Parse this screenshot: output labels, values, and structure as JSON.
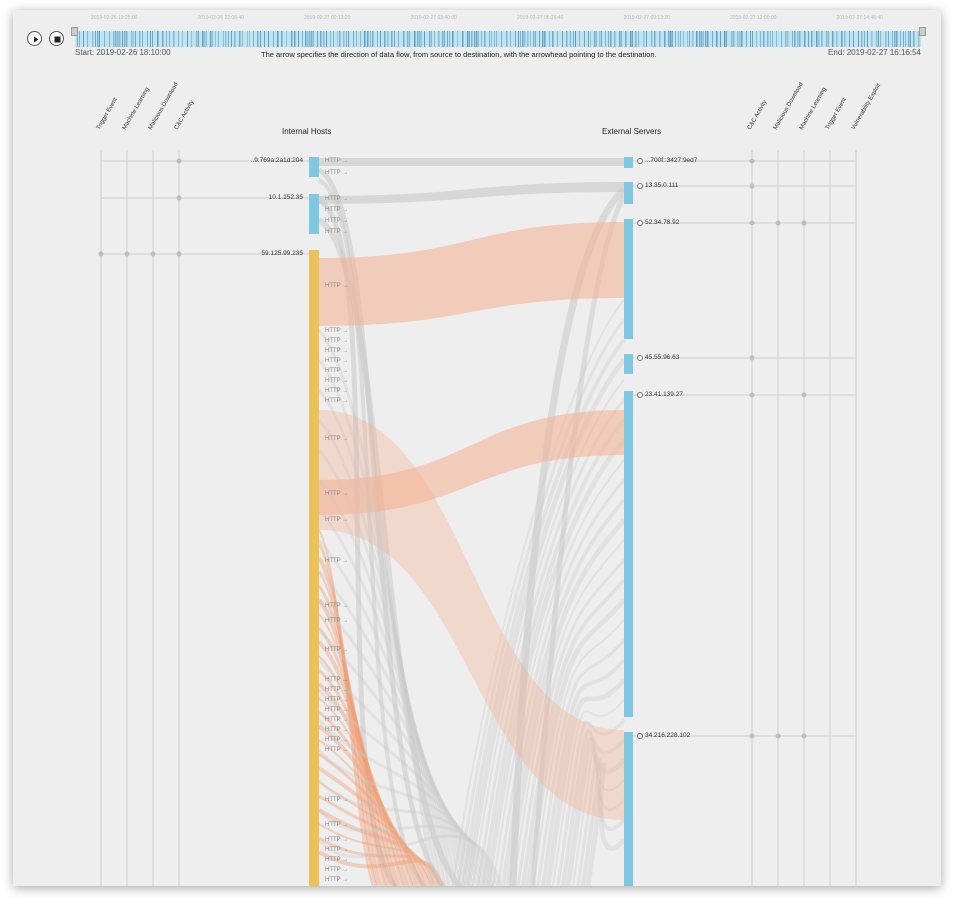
{
  "timeline": {
    "tick_labels": [
      "2019-02-26 19:25:00",
      "2019-02-26 22:06:40",
      "2019-02-27 00:13:20",
      "2019-02-27 03:40:00",
      "2019-02-27 06:26:40",
      "2019-02-27 09:13:20",
      "2019-02-27 12:00:00",
      "2019-02-27 14:46:40"
    ],
    "start_label": "Start: 2019-02-26 18:10:00",
    "end_label": "End: 2019-02-27 16:16:54",
    "description": "The arrow specifies the direction of data flow, from source to destination, with the arrowhead pointing to the destination.",
    "controls": {
      "play_icon": "play-icon",
      "stop_icon": "stop-icon"
    },
    "strip_color": "#bfe3ef",
    "strip_mark_color": "#4a90b8"
  },
  "left_categories": [
    "Trigger Event",
    "Machine Learning",
    "Malicious Download",
    "C&C Activity"
  ],
  "right_categories": [
    "C&C Activity",
    "Malicious Download",
    "Machine Learning",
    "Trigger Event",
    "Vulnerability Exploit"
  ],
  "internal_title": "Internal Hosts",
  "external_title": "External Servers",
  "internal_hosts": [
    {
      "label": "..9:769a:2a1d:204",
      "color": "#7ec8e3",
      "marks": [
        4
      ]
    },
    {
      "label": "10.1.152.35",
      "color": "#7ec8e3",
      "marks": [
        4
      ]
    },
    {
      "label": "59.125.99.235",
      "color": "#ebc15a",
      "marks": [
        1,
        2,
        3,
        4
      ]
    }
  ],
  "external_servers": [
    {
      "label": "...700f::3427:9ed7",
      "marks": [
        1
      ]
    },
    {
      "label": "13.35.0.111",
      "marks": [
        1
      ]
    },
    {
      "label": "52.34.78.92",
      "marks": [
        1,
        2,
        3
      ]
    },
    {
      "label": "45.55.96.63",
      "marks": [
        1
      ]
    },
    {
      "label": "23.41.139.27",
      "marks": [
        1,
        3
      ]
    },
    {
      "label": "34.216.228.102",
      "marks": [
        1,
        2,
        3
      ]
    }
  ],
  "flow_label": "HTTP",
  "flow_labels_count": 40,
  "colors": {
    "malicious_flow": "#f5b090",
    "benign_flow": "#c8c8c8",
    "server_bar": "#7ec8e3",
    "host_bar_internal": "#ebc15a"
  }
}
